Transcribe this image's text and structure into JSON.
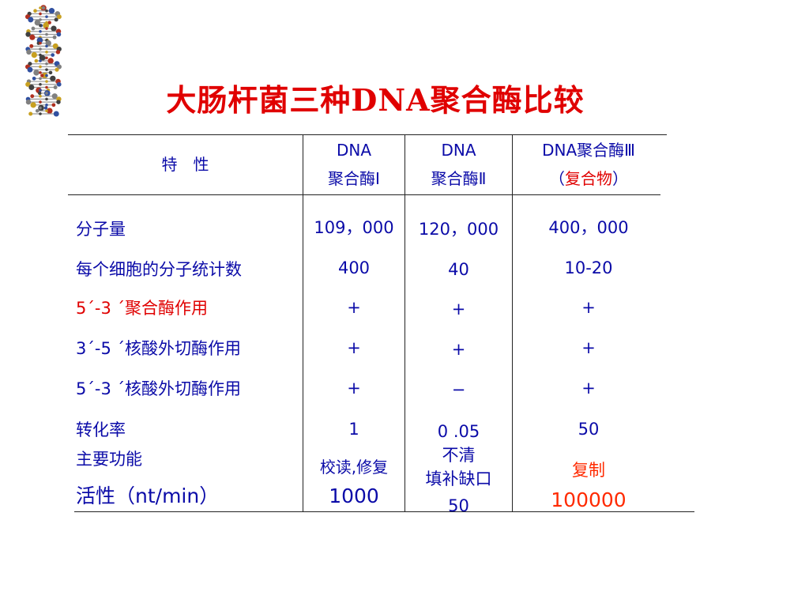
{
  "title": "大肠杆菌三种DNA聚合酶比较",
  "header": {
    "characteristic": "特　性",
    "pol1_line1": "DNA",
    "pol1_line2": "聚合酶Ⅰ",
    "pol2_line1": "DNA",
    "pol2_line2": "聚合酶Ⅱ",
    "pol3_line1": "DNA聚合酶Ⅲ",
    "pol3_line2_open": "（",
    "pol3_line2_mid": "复合物",
    "pol3_line2_close": "）"
  },
  "rows": [
    {
      "label": "分子量",
      "pol1": "109，000",
      "pol2": "120，000",
      "pol3": "400，000"
    },
    {
      "label": "每个细胞的分子统计数",
      "pol1": "400",
      "pol2": "40",
      "pol3": "10-20"
    },
    {
      "label": "5´-3 ´聚合酶作用",
      "pol1": "+",
      "pol2": "+",
      "pol3": "+"
    },
    {
      "label": "3´-5 ´核酸外切酶作用",
      "pol1": "+",
      "pol2": "+",
      "pol3": "+"
    },
    {
      "label": "5´-3 ´核酸外切酶作用",
      "pol1": "+",
      "pol2": "−",
      "pol3": "+"
    },
    {
      "label": "转化率",
      "pol1": "1",
      "pol2": "0 .05",
      "pol3": "50"
    }
  ],
  "function_row": {
    "label": "主要功能",
    "pol1": "校读,修复",
    "pol2_line1": "不清",
    "pol2_line2": "填补缺口",
    "pol3": "复制"
  },
  "activity_row": {
    "label": "活性（nt/min）",
    "pol1": "1000",
    "pol2": "50",
    "pol3": "100000"
  },
  "colors": {
    "text_blue": "#0b0ba8",
    "highlight_red": "#e00000",
    "highlight_orange": "#ff2a00"
  },
  "icons": {
    "dna_image": "dna-double-helix-model"
  }
}
